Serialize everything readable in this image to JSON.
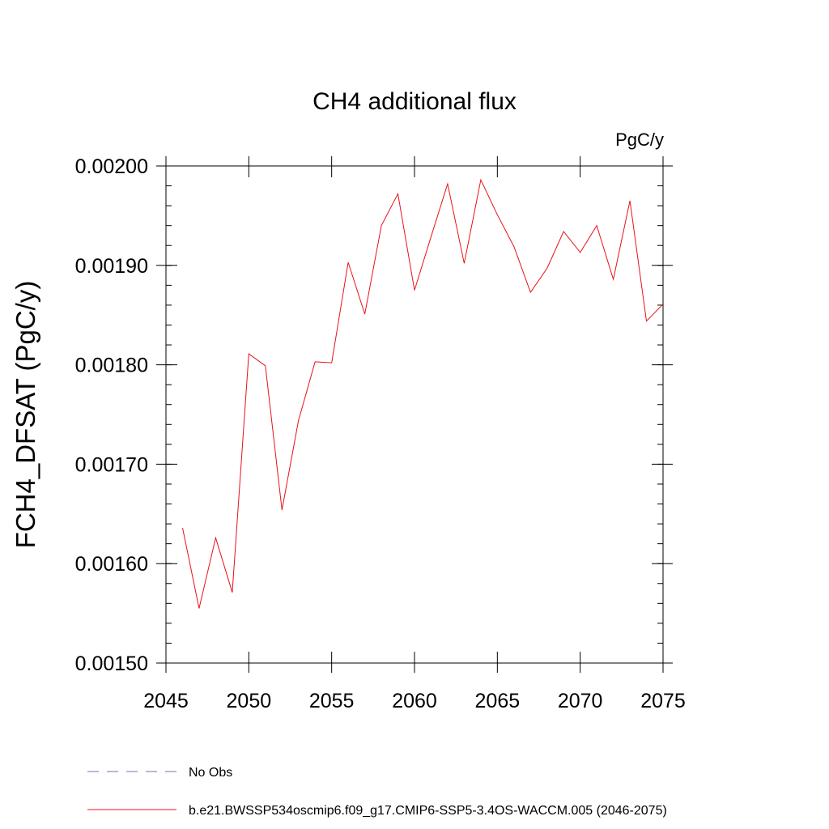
{
  "chart_data": {
    "type": "line",
    "title": "CH4 additional flux",
    "units": "PgC/y",
    "ylabel": "FCH4_DFSAT  (PgC/y)",
    "xlabel": "",
    "xlim": [
      2045,
      2075
    ],
    "ylim": [
      0.0015,
      0.002
    ],
    "xticks": [
      2045,
      2050,
      2055,
      2060,
      2065,
      2070,
      2075
    ],
    "xtick_labels": [
      "2045",
      "2050",
      "2055",
      "2060",
      "2065",
      "2070",
      "2075"
    ],
    "yticks": [
      0.0015,
      0.0016,
      0.0017,
      0.0018,
      0.0019,
      0.002
    ],
    "ytick_labels": [
      "0.00150",
      "0.00160",
      "0.00170",
      "0.00180",
      "0.00190",
      "0.00200"
    ],
    "grid": false,
    "legend_position": "bottom",
    "series": [
      {
        "name": "No Obs",
        "style": "dashed",
        "color": "#7a6fb0",
        "x": [],
        "y": []
      },
      {
        "name": "b.e21.BWSSP534oscmip6.f09_g17.CMIP6-SSP5-3.4OS-WACCM.005 (2046-2075)",
        "style": "solid",
        "color": "#e8111a",
        "x": [
          2046,
          2047,
          2048,
          2049,
          2050,
          2051,
          2052,
          2053,
          2054,
          2055,
          2056,
          2057,
          2058,
          2059,
          2060,
          2061,
          2062,
          2063,
          2064,
          2065,
          2066,
          2067,
          2068,
          2069,
          2070,
          2071,
          2072,
          2073,
          2074,
          2075
        ],
        "y": [
          0.001636,
          0.001555,
          0.001626,
          0.001571,
          0.001811,
          0.001799,
          0.001654,
          0.001744,
          0.001803,
          0.001802,
          0.001903,
          0.001851,
          0.00194,
          0.001972,
          0.001875,
          0.001929,
          0.001982,
          0.001902,
          0.001986,
          0.001951,
          0.001919,
          0.001873,
          0.001897,
          0.001934,
          0.001913,
          0.00194,
          0.001886,
          0.001965,
          0.001844,
          0.001861
        ]
      }
    ]
  }
}
